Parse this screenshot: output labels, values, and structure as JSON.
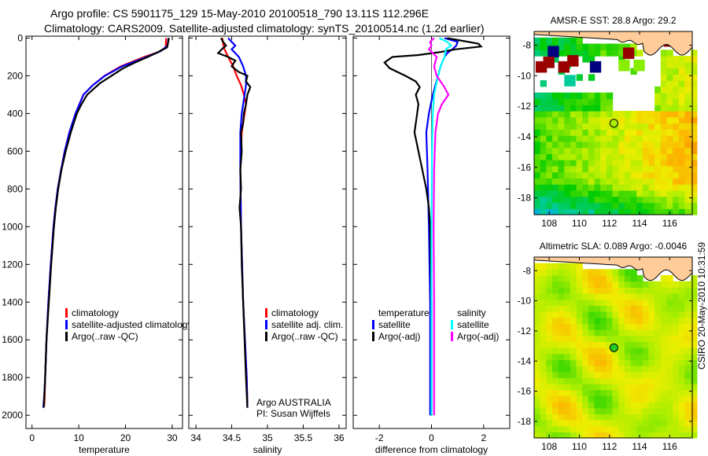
{
  "title": {
    "line1": "Argo profile: CS 5901175_129 15-May-2010 20100518_790 13.11S 112.296E",
    "line2": "Climatology: CARS2009. Satellite-adjusted climatology: synTS_20100514.nc (1.2d earlier)"
  },
  "colors": {
    "climatology": "#ff0000",
    "satellite": "#0000ff",
    "argo": "#000000",
    "sal_satellite": "#00ffff",
    "sal_argo": "#ff00ff",
    "land": "#ffcc99"
  },
  "chart_data": [
    {
      "id": "temperature",
      "type": "line",
      "xlabel": "temperature",
      "ylabel": "",
      "xlim": [
        -1.3,
        32.2
      ],
      "ylim": [
        2070,
        -10
      ],
      "xticks": [
        0,
        10,
        20,
        30
      ],
      "yticks": [
        0,
        200,
        400,
        600,
        800,
        1000,
        1200,
        1400,
        1600,
        1800,
        2000
      ],
      "legend": [
        "climatology",
        "satellite-adjusted climatology",
        "Argo(..raw -QC)"
      ],
      "legend_position": "lower-middle",
      "series": [
        {
          "name": "climatology",
          "color": "#ff0000",
          "depth": [
            0,
            50,
            75,
            100,
            150,
            200,
            250,
            300,
            400,
            500,
            600,
            700,
            800,
            900,
            1000,
            1200,
            1400,
            1600,
            1800,
            1900,
            1950
          ],
          "values": [
            28.7,
            28.6,
            27,
            24,
            19,
            15.5,
            13,
            11,
            9.3,
            8,
            7,
            6.2,
            5.5,
            5,
            4.6,
            4,
            3.5,
            3.1,
            2.8,
            2.7,
            2.6
          ]
        },
        {
          "name": "satellite-adjusted climatology",
          "color": "#0000ff",
          "depth": [
            0,
            40,
            70,
            100,
            150,
            200,
            250,
            300,
            400,
            500,
            600,
            700,
            800,
            900,
            1000,
            1200,
            1400,
            1600,
            1800,
            1900,
            1960
          ],
          "values": [
            29.2,
            29.0,
            27.5,
            24.5,
            19.3,
            15.6,
            13,
            11,
            9.3,
            8,
            7,
            6.2,
            5.5,
            5,
            4.6,
            4,
            3.5,
            3.1,
            2.8,
            2.6,
            2.4
          ]
        },
        {
          "name": "Argo(..raw -QC)",
          "color": "#000000",
          "depth": [
            0,
            50,
            80,
            100,
            130,
            160,
            200,
            240,
            300,
            350,
            400,
            500,
            600,
            700,
            800,
            900,
            1000,
            1200,
            1400,
            1600,
            1800,
            1960
          ],
          "values": [
            29.3,
            28.9,
            26.5,
            24.8,
            22,
            19.5,
            17,
            14.5,
            11.8,
            10.6,
            9.6,
            8.3,
            7.2,
            6.3,
            5.6,
            5.1,
            4.7,
            4.1,
            3.6,
            3.1,
            2.8,
            2.5
          ]
        }
      ]
    },
    {
      "id": "salinity",
      "type": "line",
      "xlabel": "salinity",
      "xlim": [
        33.9,
        36.1
      ],
      "ylim": [
        2070,
        -10
      ],
      "xticks": [
        34,
        34.5,
        35,
        35.5,
        36
      ],
      "xticklabels": [
        "34",
        "34.5",
        "35",
        "35.5",
        "36"
      ],
      "legend": [
        "climatology",
        "satellite adj. clim.",
        "Argo(..raw -QC)"
      ],
      "annotation": [
        "Argo AUSTRALIA",
        "PI: Susan Wijffels"
      ],
      "series": [
        {
          "name": "climatology",
          "color": "#ff0000",
          "depth": [
            0,
            30,
            60,
            100,
            150,
            200,
            250,
            300,
            350,
            400,
            500,
            700,
            1000,
            1400,
            1800,
            1950
          ],
          "values": [
            34.37,
            34.38,
            34.4,
            34.45,
            34.52,
            34.57,
            34.63,
            34.67,
            34.7,
            34.68,
            34.64,
            34.62,
            34.63,
            34.66,
            34.71,
            34.72
          ]
        },
        {
          "name": "satellite adj. clim.",
          "color": "#0000ff",
          "depth": [
            0,
            20,
            40,
            60,
            100,
            150,
            200,
            250,
            300,
            350,
            400,
            500,
            700,
            1000,
            1400,
            1800,
            1960
          ],
          "values": [
            34.45,
            34.5,
            34.55,
            34.5,
            34.6,
            34.66,
            34.7,
            34.7,
            34.68,
            34.66,
            34.64,
            34.62,
            34.62,
            34.63,
            34.66,
            34.71,
            34.72
          ]
        },
        {
          "name": "Argo(..raw -QC)",
          "color": "#000000",
          "depth": [
            0,
            20,
            40,
            60,
            80,
            100,
            120,
            150,
            180,
            200,
            230,
            260,
            300,
            350,
            400,
            450,
            500,
            600,
            700,
            800,
            900,
            1000,
            1200,
            1400,
            1600,
            1800,
            1960
          ],
          "values": [
            34.35,
            34.38,
            34.42,
            34.36,
            34.31,
            34.45,
            34.55,
            34.5,
            34.6,
            34.72,
            34.7,
            34.76,
            34.72,
            34.7,
            34.67,
            34.66,
            34.63,
            34.64,
            34.62,
            34.63,
            34.61,
            34.63,
            34.64,
            34.66,
            34.68,
            34.7,
            34.72
          ]
        }
      ]
    },
    {
      "id": "difference",
      "type": "line",
      "xlabel": "difference from climatology",
      "xlim": [
        -3,
        3
      ],
      "ylim": [
        2070,
        -10
      ],
      "xticks": [
        -2,
        0,
        2
      ],
      "legend_temperature": {
        "heading": "temperature",
        "items": [
          "satellite",
          "Argo(-adj)"
        ]
      },
      "legend_salinity": {
        "heading": "salinity",
        "items": [
          "satellite",
          "Argo(-adj)"
        ]
      },
      "series": [
        {
          "name": "temperature satellite",
          "color": "#0000ff",
          "depth": [
            0,
            20,
            40,
            60,
            80,
            100,
            150,
            200,
            300,
            400,
            500,
            700,
            1000,
            1400,
            2000
          ],
          "values": [
            0.5,
            1.0,
            0.95,
            0.8,
            0.6,
            0.5,
            0.35,
            0.25,
            0.05,
            -0.1,
            -0.2,
            -0.15,
            -0.1,
            -0.05,
            -0.05
          ]
        },
        {
          "name": "temperature Argo(-adj)",
          "color": "#000000",
          "depth": [
            0,
            15,
            30,
            45,
            60,
            75,
            90,
            100,
            130,
            160,
            200,
            230,
            260,
            300,
            350,
            400,
            450,
            500,
            600,
            700,
            800,
            900,
            1000,
            1400,
            2000
          ],
          "values": [
            0.6,
            1.2,
            1.8,
            1.9,
            0.9,
            0.3,
            -0.5,
            -1.5,
            -1.8,
            -1.6,
            -1.0,
            -0.6,
            -0.45,
            -0.6,
            -0.5,
            -0.55,
            -0.6,
            -0.65,
            -0.5,
            -0.35,
            -0.2,
            -0.1,
            -0.05,
            0,
            0
          ]
        },
        {
          "name": "salinity satellite",
          "color": "#00ffff",
          "depth": [
            0,
            20,
            40,
            60,
            100,
            150,
            200,
            300,
            400,
            600,
            1000,
            1500,
            2000
          ],
          "values": [
            0.3,
            0.6,
            0.75,
            0.55,
            0.5,
            0.35,
            0.25,
            0.1,
            0.05,
            0.02,
            0,
            0,
            0
          ]
        },
        {
          "name": "salinity Argo(-adj)",
          "color": "#ff00ff",
          "depth": [
            0,
            20,
            40,
            60,
            80,
            100,
            150,
            200,
            250,
            300,
            350,
            400,
            500,
            700,
            1000,
            1400,
            2000
          ],
          "values": [
            0.1,
            -0.05,
            0.0,
            -0.1,
            0.05,
            0.2,
            0.1,
            0.2,
            0.45,
            0.65,
            0.4,
            0.25,
            0.15,
            0.1,
            0.08,
            0.1,
            0.1
          ]
        }
      ]
    }
  ],
  "maps": [
    {
      "id": "sst",
      "title": "AMSR-E SST: 28.8 Argo: 29.2",
      "type": "heatmap",
      "xlim": [
        107,
        117.5
      ],
      "ylim": [
        -19.1,
        -7.1
      ],
      "xticks": [
        108,
        110,
        112,
        114,
        116
      ],
      "yticks": [
        -8,
        -10,
        -12,
        -14,
        -16,
        -18
      ],
      "float_position": [
        112.296,
        -13.11
      ]
    },
    {
      "id": "sla",
      "title": "Altimetric SLA: 0.089 Argo: -0.0046",
      "type": "heatmap",
      "xlim": [
        107,
        117.5
      ],
      "ylim": [
        -19.1,
        -7.1
      ],
      "xticks": [
        108,
        110,
        112,
        114,
        116
      ],
      "yticks": [
        -8,
        -10,
        -12,
        -14,
        -16,
        -18
      ],
      "float_position": [
        112.296,
        -13.11
      ]
    }
  ],
  "footer": "CSIRO 20-May-2010 10:31:59"
}
